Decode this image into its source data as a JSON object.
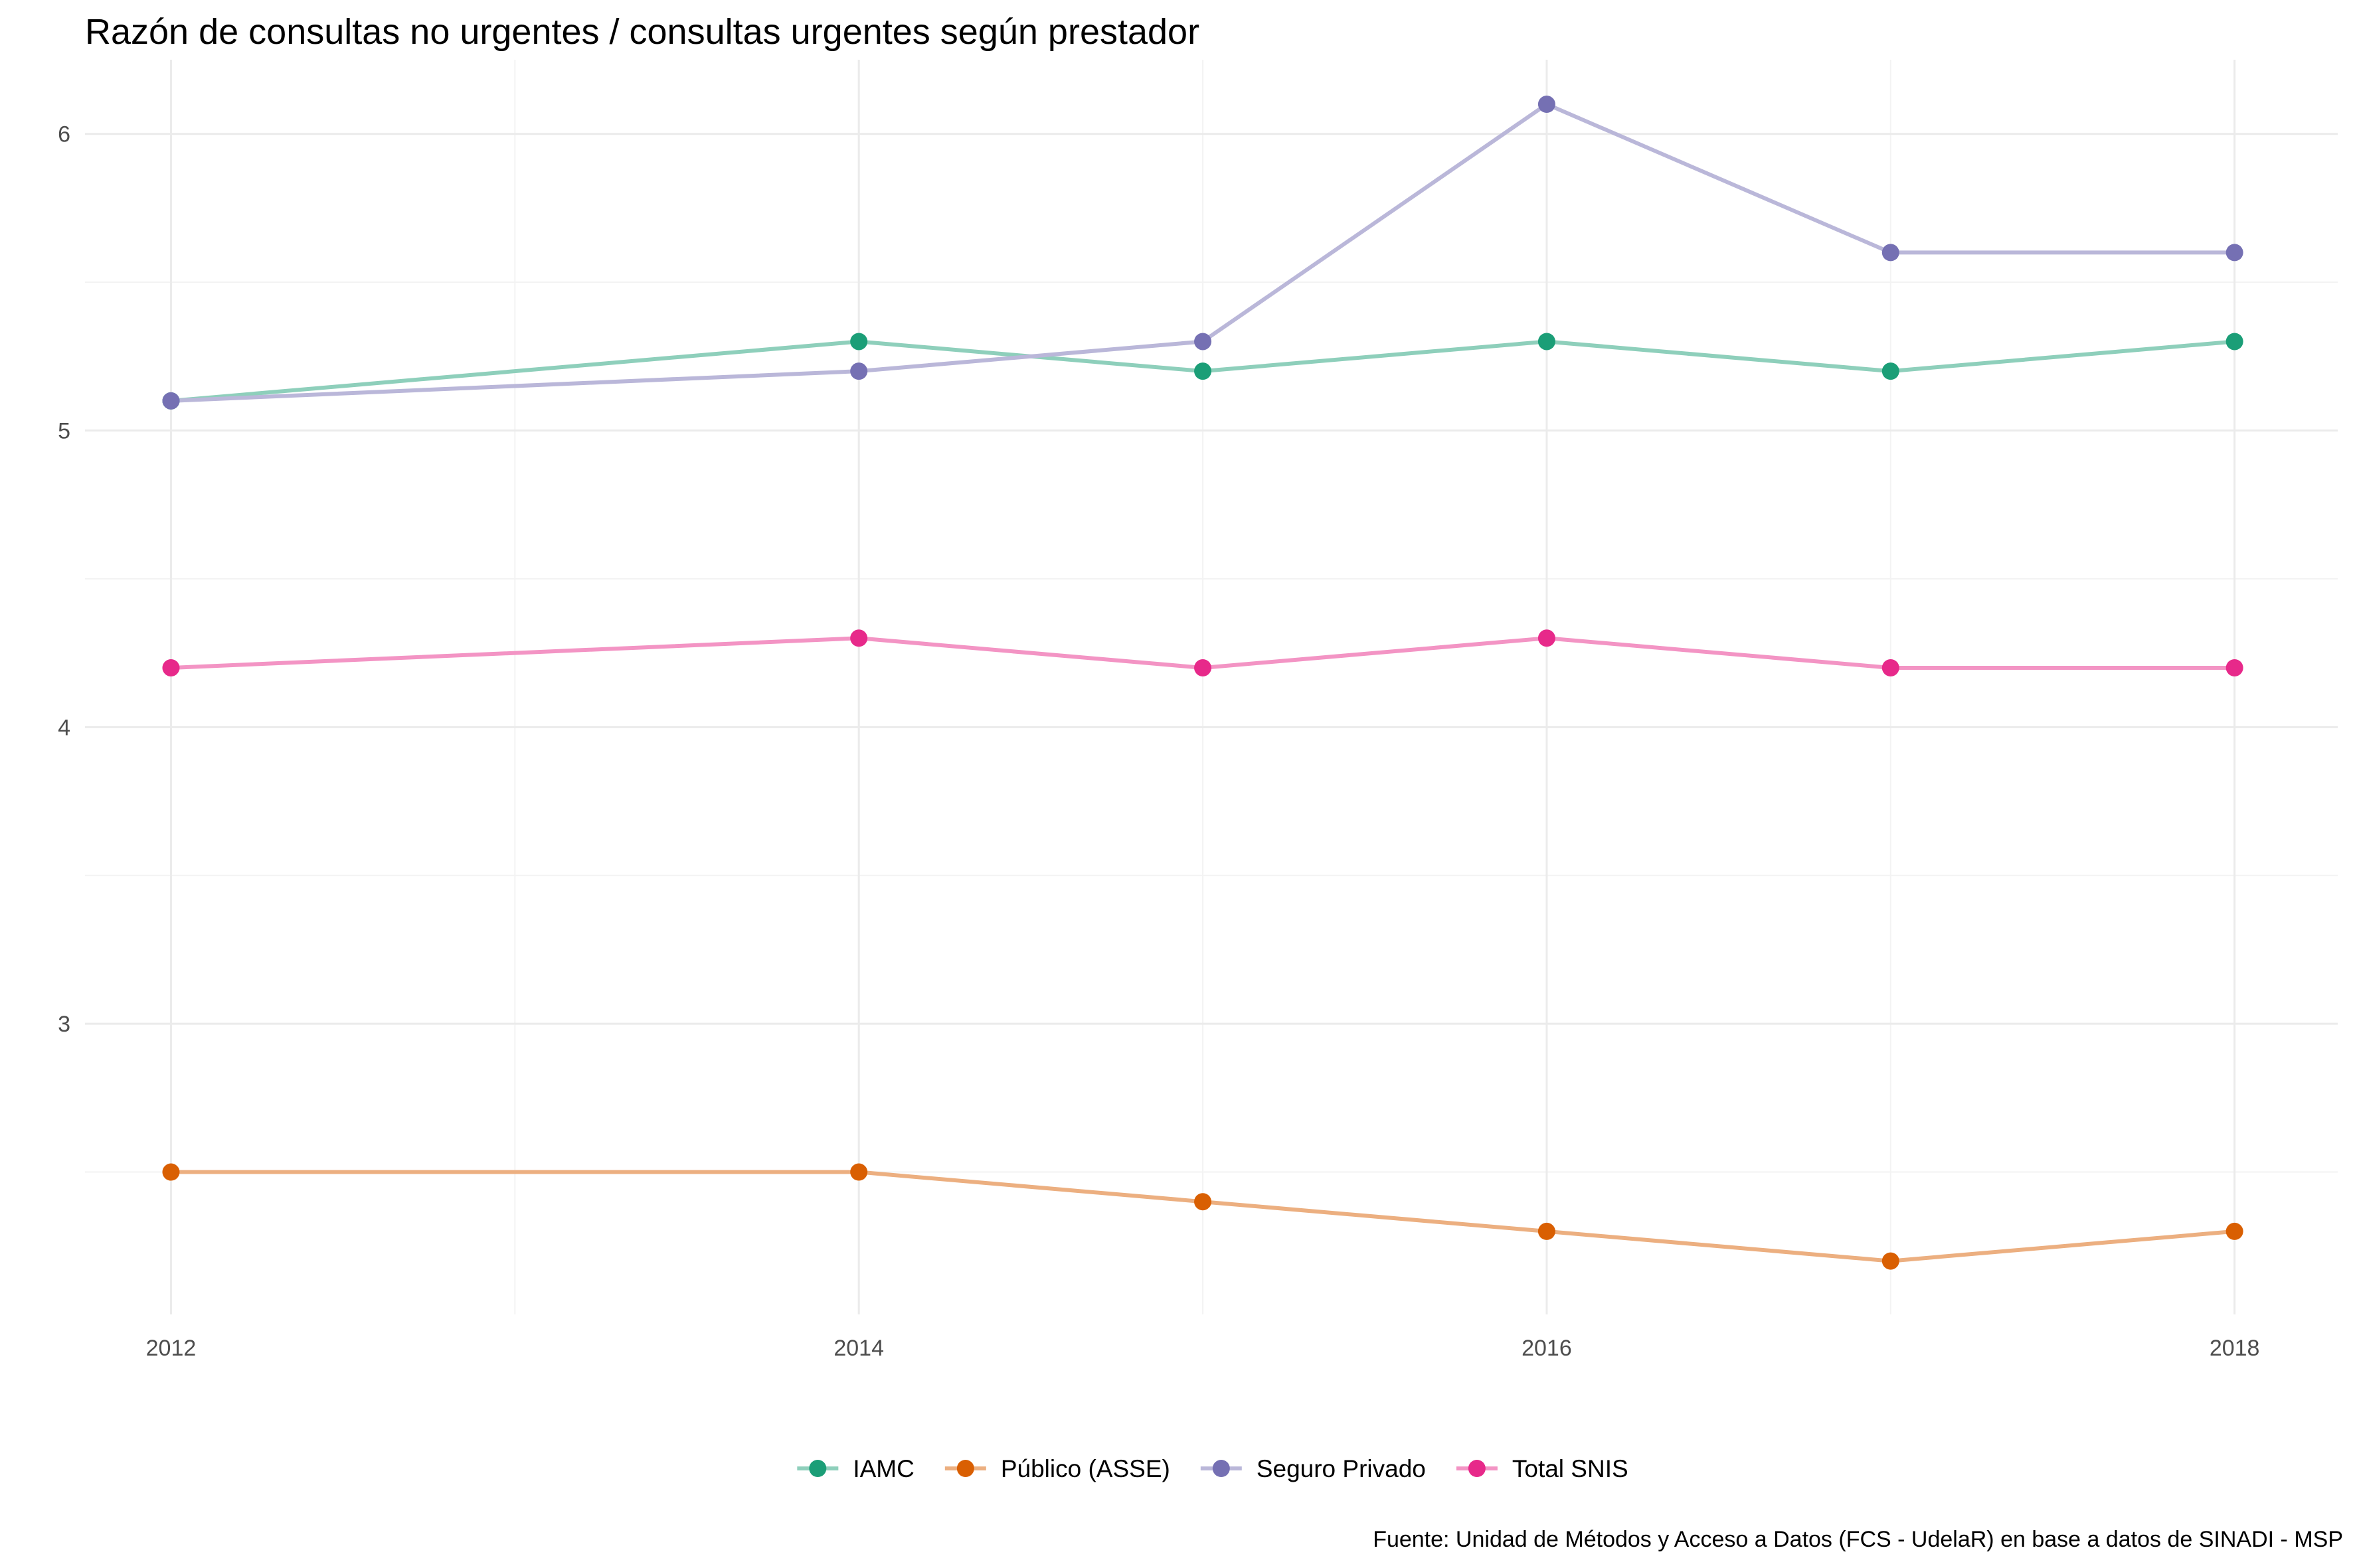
{
  "chart_data": {
    "type": "line",
    "title": "Razón de consultas no urgentes / consultas urgentes según prestador",
    "xlabel": "",
    "ylabel": "",
    "caption": "Fuente: Unidad de Métodos y Acceso a Datos (FCS - UdelaR) en base a datos de SINADI - MSP",
    "x": [
      2012,
      2014,
      2015,
      2016,
      2017,
      2018
    ],
    "x_ticks": [
      2012,
      2014,
      2016,
      2018
    ],
    "y_ticks": [
      3,
      4,
      5,
      6
    ],
    "xlim": [
      2011.75,
      2018.3
    ],
    "ylim": [
      2.02,
      6.25
    ],
    "grid": true,
    "legend_position": "bottom",
    "series": [
      {
        "name": "IAMC",
        "color": "#1b9e77",
        "line_color": "#8ecfbb",
        "values": [
          5.1,
          5.3,
          5.2,
          5.3,
          5.2,
          5.3
        ]
      },
      {
        "name": "Público (ASSE)",
        "color": "#d95f02",
        "line_color": "#ecaf80",
        "values": [
          2.5,
          2.5,
          2.4,
          2.3,
          2.2,
          2.3
        ]
      },
      {
        "name": "Seguro Privado",
        "color": "#7570b3",
        "line_color": "#bab7d9",
        "values": [
          5.1,
          5.2,
          5.3,
          6.1,
          5.6,
          5.6
        ]
      },
      {
        "name": "Total SNIS",
        "color": "#e7298a",
        "line_color": "#f394c4",
        "values": [
          4.2,
          4.3,
          4.2,
          4.3,
          4.2,
          4.2
        ]
      }
    ]
  }
}
